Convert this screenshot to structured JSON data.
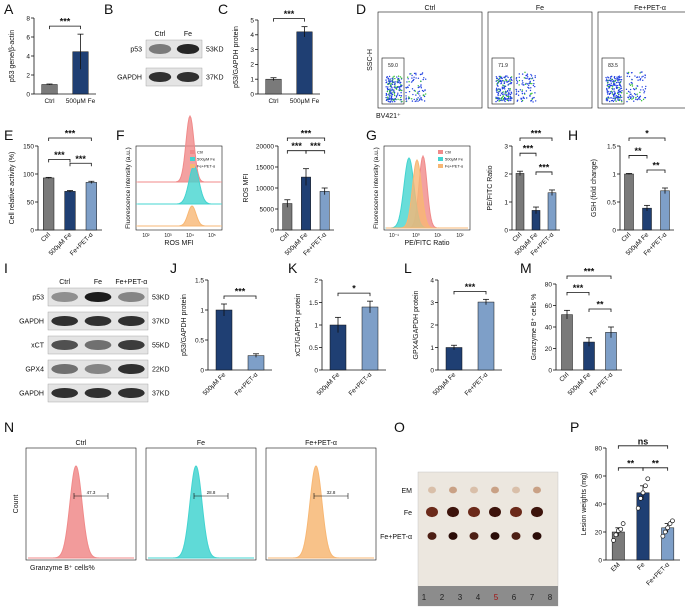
{
  "figure": {
    "panel_letters": [
      "A",
      "B",
      "C",
      "D",
      "E",
      "F",
      "G",
      "H",
      "I",
      "J",
      "K",
      "L",
      "M",
      "N",
      "O",
      "P"
    ],
    "colors": {
      "ctrl_gray": "#7a7a7a",
      "fe_navy": "#1f3f73",
      "pet_blue": "#7e9fc8",
      "histo_red": "#f08a8a",
      "histo_cyan": "#43d4d0",
      "histo_orange": "#f7b774",
      "dot_blue": "#2040e0"
    }
  },
  "chart_data": [
    {
      "panel": "A",
      "type": "bar",
      "ylabel": "p53 gene/β-actin",
      "categories": [
        "Ctrl",
        "500μM Fe"
      ],
      "values": [
        1.0,
        4.45
      ],
      "errors": [
        0.05,
        1.85
      ],
      "ylim": [
        0,
        8
      ],
      "yticks": [
        0,
        2,
        4,
        6,
        8
      ],
      "significance": [
        {
          "pair": [
            0,
            1
          ],
          "label": "***"
        }
      ]
    },
    {
      "panel": "B",
      "type": "table",
      "columns": [
        "Ctrl",
        "Fe"
      ],
      "rows": [
        {
          "label": "p53",
          "size": "53KD"
        },
        {
          "label": "GAPDH",
          "size": "37KD"
        }
      ]
    },
    {
      "panel": "C",
      "type": "bar",
      "ylabel": "p53/GAPDH protein",
      "categories": [
        "Ctrl",
        "500μM Fe"
      ],
      "values": [
        1.0,
        4.2
      ],
      "errors": [
        0.1,
        0.35
      ],
      "ylim": [
        0,
        5
      ],
      "yticks": [
        0,
        1,
        2,
        3,
        4,
        5
      ],
      "significance": [
        {
          "pair": [
            0,
            1
          ],
          "label": "***"
        }
      ]
    },
    {
      "panel": "D",
      "type": "scatter",
      "ylabel": "SSC-H",
      "xlabel": "BV421⁺",
      "facets": [
        {
          "title": "Ctrl",
          "gate_value": "59.0"
        },
        {
          "title": "Fe",
          "gate_value": "71.9"
        },
        {
          "title": "Fe+PET-α",
          "gate_value": "83.5"
        }
      ]
    },
    {
      "panel": "E",
      "type": "bar",
      "ylabel": "Cell relative activity (%)",
      "categories": [
        "Ctrl",
        "500μM Fe",
        "Fe+PET-α"
      ],
      "values": [
        93,
        69,
        85
      ],
      "errors": [
        1.0,
        1.5,
        2.0
      ],
      "ylim": [
        0,
        150
      ],
      "yticks": [
        0,
        50,
        100,
        150
      ],
      "significance": [
        {
          "pair": [
            0,
            1
          ],
          "label": "***"
        },
        {
          "pair": [
            1,
            2
          ],
          "label": "***"
        },
        {
          "pair": [
            0,
            2
          ],
          "label": "***"
        }
      ]
    },
    {
      "panel": "F-histogram",
      "type": "area",
      "ylabel": "Fluorescence intensity (a.u.)",
      "xlabel": "ROS MFI",
      "legend": [
        "Ctrl",
        "500μM Fe",
        "Fe+PET-α"
      ],
      "xticks": [
        "10²",
        "10³",
        "10⁴",
        "10⁵"
      ]
    },
    {
      "panel": "F-bar",
      "type": "bar",
      "ylabel": "ROS MFI",
      "categories": [
        "Ctrl",
        "500μM Fe",
        "Fe+PET-α"
      ],
      "values": [
        6300,
        12600,
        9200
      ],
      "errors": [
        900,
        2000,
        800
      ],
      "ylim": [
        0,
        20000
      ],
      "yticks": [
        0,
        5000,
        10000,
        15000,
        20000
      ],
      "significance": [
        {
          "pair": [
            0,
            1
          ],
          "label": "***"
        },
        {
          "pair": [
            1,
            2
          ],
          "label": "***"
        },
        {
          "pair": [
            0,
            2
          ],
          "label": "***"
        }
      ]
    },
    {
      "panel": "G-histogram",
      "type": "area",
      "ylabel": "Fluorescence intensity (a.u.)",
      "xlabel": "PE/FITC Ratio",
      "legend": [
        "Ctrl",
        "500μM Fe",
        "Fe+PET-α"
      ],
      "xticks": [
        "10⁻¹",
        "10⁰",
        "10¹",
        "10²"
      ]
    },
    {
      "panel": "G-bar",
      "type": "bar",
      "ylabel": "PE/FITC Ratio",
      "categories": [
        "Ctrl",
        "500μM Fe",
        "Fe+PET-α"
      ],
      "values": [
        2.02,
        0.7,
        1.33
      ],
      "errors": [
        0.08,
        0.12,
        0.1
      ],
      "ylim": [
        0,
        3
      ],
      "yticks": [
        0,
        1,
        2,
        3
      ],
      "significance": [
        {
          "pair": [
            0,
            1
          ],
          "label": "***"
        },
        {
          "pair": [
            1,
            2
          ],
          "label": "***"
        },
        {
          "pair": [
            0,
            2
          ],
          "label": "***"
        }
      ]
    },
    {
      "panel": "H",
      "type": "bar",
      "ylabel": "GSH (fold change)",
      "categories": [
        "Ctrl",
        "500μM Fe",
        "Fe+PET-α"
      ],
      "values": [
        1.0,
        0.39,
        0.7
      ],
      "errors": [
        0.01,
        0.05,
        0.05
      ],
      "ylim": [
        0,
        1.5
      ],
      "yticks": [
        0.0,
        0.5,
        1.0,
        1.5
      ],
      "significance": [
        {
          "pair": [
            0,
            1
          ],
          "label": "**"
        },
        {
          "pair": [
            1,
            2
          ],
          "label": "**"
        },
        {
          "pair": [
            0,
            2
          ],
          "label": "*"
        }
      ]
    },
    {
      "panel": "I",
      "type": "table",
      "columns": [
        "Ctrl",
        "Fe",
        "Fe+PET-α"
      ],
      "rows": [
        {
          "label": "p53",
          "size": "53KD"
        },
        {
          "label": "GAPDH",
          "size": "37KD"
        },
        {
          "label": "xCT",
          "size": "55KD"
        },
        {
          "label": "GPX4",
          "size": "22KD"
        },
        {
          "label": "GAPDH",
          "size": "37KD"
        }
      ]
    },
    {
      "panel": "J",
      "type": "bar",
      "ylabel": "p53/GAPDH protein",
      "categories": [
        "500μM Fe",
        "Fe+PET-α"
      ],
      "values": [
        1.0,
        0.24
      ],
      "errors": [
        0.1,
        0.03
      ],
      "ylim": [
        0,
        1.5
      ],
      "yticks": [
        0.0,
        0.5,
        1.0,
        1.5
      ],
      "significance": [
        {
          "pair": [
            0,
            1
          ],
          "label": "***"
        }
      ]
    },
    {
      "panel": "K",
      "type": "bar",
      "ylabel": "xCT/GAPDH protein",
      "categories": [
        "500μM Fe",
        "Fe+PET-α"
      ],
      "values": [
        1.0,
        1.4
      ],
      "errors": [
        0.17,
        0.13
      ],
      "ylim": [
        0,
        2.0
      ],
      "yticks": [
        0.0,
        0.5,
        1.0,
        1.5,
        2.0
      ],
      "significance": [
        {
          "pair": [
            0,
            1
          ],
          "label": "*"
        }
      ]
    },
    {
      "panel": "L",
      "type": "bar",
      "ylabel": "GPX4/GAPDH protein",
      "categories": [
        "500μM Fe",
        "Fe+PET-α"
      ],
      "values": [
        1.0,
        3.02
      ],
      "errors": [
        0.1,
        0.12
      ],
      "ylim": [
        0,
        4
      ],
      "yticks": [
        0,
        1,
        2,
        3,
        4
      ],
      "significance": [
        {
          "pair": [
            0,
            1
          ],
          "label": "***"
        }
      ]
    },
    {
      "panel": "M",
      "type": "bar",
      "ylabel": "Granzyme B⁺ cells %",
      "categories": [
        "Ctrl",
        "500μM Fe",
        "Fe+PET-α"
      ],
      "values": [
        51.5,
        26,
        35
      ],
      "errors": [
        4,
        4,
        5
      ],
      "ylim": [
        0,
        80
      ],
      "yticks": [
        0,
        20,
        40,
        60,
        80
      ],
      "significance": [
        {
          "pair": [
            0,
            1
          ],
          "label": "***"
        },
        {
          "pair": [
            1,
            2
          ],
          "label": "**"
        },
        {
          "pair": [
            0,
            2
          ],
          "label": "***"
        }
      ]
    },
    {
      "panel": "N",
      "type": "area",
      "ylabel": "Count",
      "xlabel": "Granzyme B⁺ cells%",
      "facets": [
        {
          "title": "Ctrl",
          "gate_value": "47.3"
        },
        {
          "title": "Fe",
          "gate_value": "28.8"
        },
        {
          "title": "Fe+PET-α",
          "gate_value": "32.8"
        }
      ]
    },
    {
      "panel": "O",
      "type": "table",
      "rows": [
        {
          "label": "EM"
        },
        {
          "label": "Fe"
        },
        {
          "label": "Fe+PET-α"
        }
      ],
      "ruler_numbers": [
        "1",
        "2",
        "3",
        "4",
        "5",
        "6",
        "7",
        "8"
      ]
    },
    {
      "panel": "P",
      "type": "bar",
      "ylabel": "Lesion weights (mg)",
      "categories": [
        "EM",
        "Fe",
        "Fe+PET-α"
      ],
      "values": [
        20,
        48,
        23
      ],
      "errors": [
        3,
        5,
        3
      ],
      "points": [
        [
          14,
          18,
          21,
          22,
          26
        ],
        [
          37,
          44,
          48,
          53,
          58
        ],
        [
          17,
          20,
          23,
          26,
          28
        ]
      ],
      "ylim": [
        0,
        80
      ],
      "yticks": [
        0,
        20,
        40,
        60,
        80
      ],
      "significance": [
        {
          "pair": [
            0,
            1
          ],
          "label": "**"
        },
        {
          "pair": [
            1,
            2
          ],
          "label": "**"
        },
        {
          "pair": [
            0,
            2
          ],
          "label": "ns"
        }
      ]
    }
  ]
}
